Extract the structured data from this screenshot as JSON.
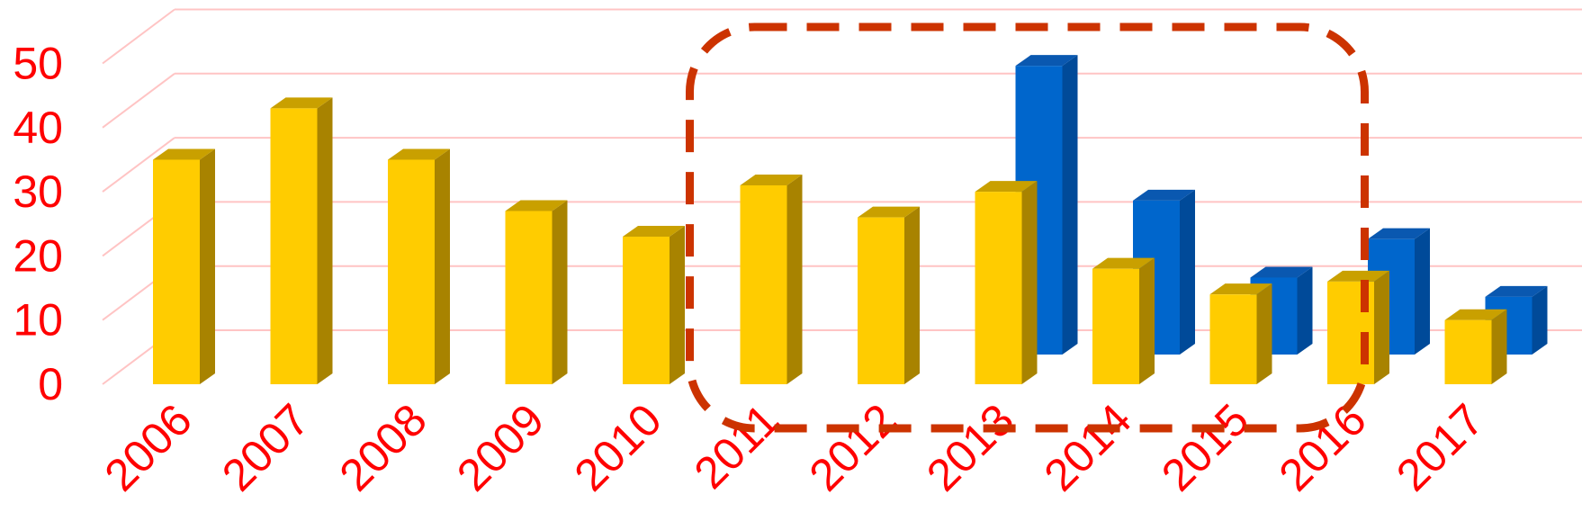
{
  "chart_data": {
    "type": "bar",
    "categories": [
      "2006",
      "2007",
      "2008",
      "2009",
      "2010",
      "2011",
      "2012",
      "2013",
      "2014",
      "2015",
      "2016",
      "2017"
    ],
    "series": [
      {
        "values": [
          35,
          43,
          35,
          27,
          23,
          31,
          26,
          30,
          18,
          14,
          16,
          10
        ]
      },
      {
        "values": [
          null,
          null,
          null,
          null,
          null,
          null,
          null,
          45,
          24,
          12,
          18,
          9
        ]
      }
    ],
    "yticks": [
      "0",
      "10",
      "20",
      "30",
      "40",
      "50"
    ],
    "ylim": [
      0,
      60
    ],
    "grid": true,
    "highlight_range": [
      "2011",
      "2015"
    ],
    "colors": {
      "front_face": "#ffcc00",
      "front_side": "#a88300",
      "front_top": "#c9a000",
      "back_face": "#0066cc",
      "back_side": "#004a99",
      "back_top": "#0a58b0",
      "grid": "#ffc4c4",
      "text": "#ff0000",
      "highlight": "#cc3300"
    }
  }
}
